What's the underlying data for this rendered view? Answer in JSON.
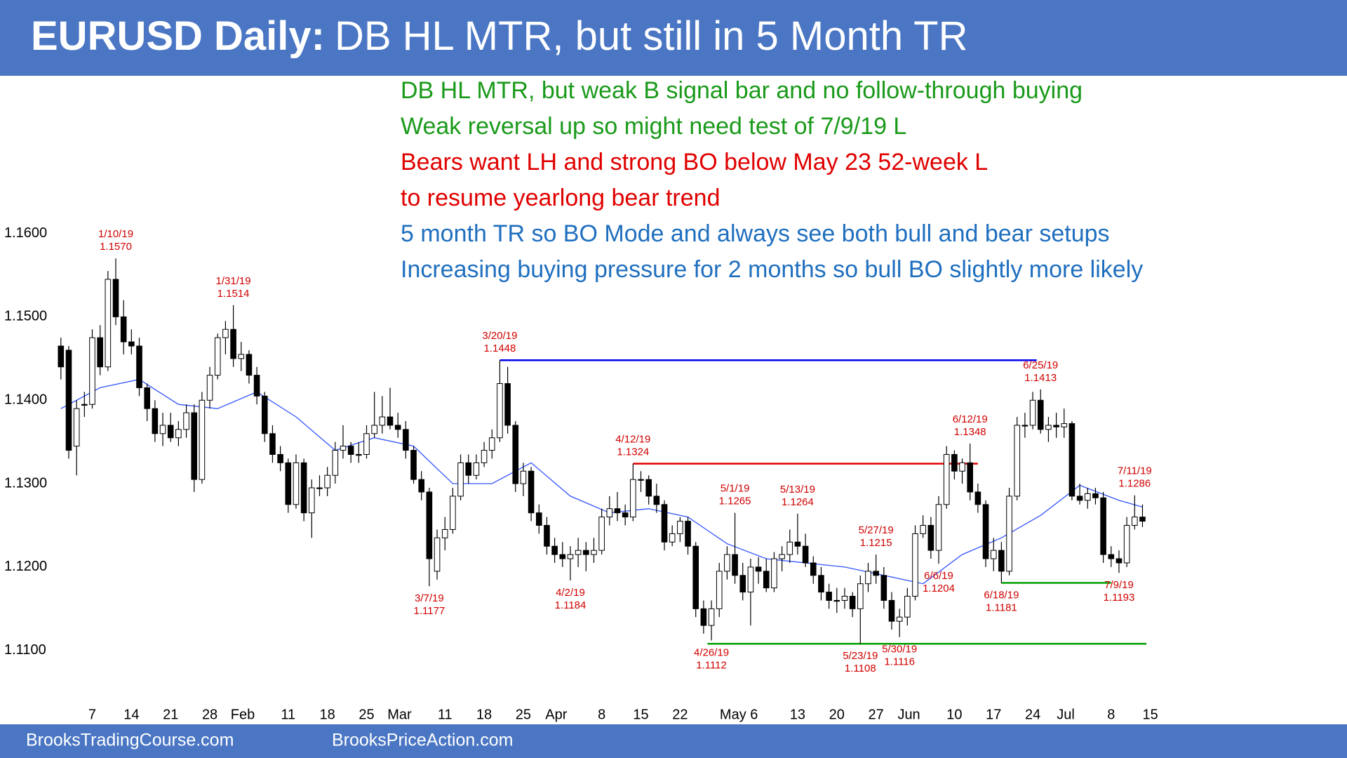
{
  "header": {
    "title_bold": "EURUSD Daily:",
    "title_rest": "DB HL MTR, but still in 5 Month TR"
  },
  "footer": {
    "left": "BrooksTradingCourse.com",
    "right": "BrooksPriceAction.com"
  },
  "chart_data": {
    "type": "candlestick",
    "notes": [
      {
        "text": "DB HL MTR, but weak B signal bar and no follow-through buying",
        "color": "#1a9a1a"
      },
      {
        "text": "Weak reversal up so might need test of 7/9/19 L",
        "color": "#1a9a1a"
      },
      {
        "text": "Bears want LH and strong BO below May 23 52-week L",
        "color": "#e00000"
      },
      {
        "text": "to resume yearlong bear trend",
        "color": "#e00000"
      },
      {
        "text": "5 month TR so BO Mode and always see both bull and bear setups",
        "color": "#1f6fbf"
      },
      {
        "text": "Increasing buying pressure for 2 months so bull BO slightly more likely",
        "color": "#1f6fbf"
      }
    ],
    "xlim": [
      -2.4,
      141
    ],
    "xticks": [
      {
        "value": 4,
        "label": "7"
      },
      {
        "value": 9,
        "label": "14"
      },
      {
        "value": 14,
        "label": "21"
      },
      {
        "value": 19,
        "label": "28"
      },
      {
        "value": 23.2,
        "label": "Feb"
      },
      {
        "value": 29,
        "label": "11"
      },
      {
        "value": 34,
        "label": "18"
      },
      {
        "value": 39,
        "label": "25"
      },
      {
        "value": 43.2,
        "label": "Mar"
      },
      {
        "value": 49,
        "label": "11"
      },
      {
        "value": 54,
        "label": "18"
      },
      {
        "value": 59,
        "label": "25"
      },
      {
        "value": 63.2,
        "label": "Apr"
      },
      {
        "value": 69,
        "label": "8"
      },
      {
        "value": 74,
        "label": "15"
      },
      {
        "value": 79,
        "label": "22"
      },
      {
        "value": 86.5,
        "label": "May 6"
      },
      {
        "value": 94,
        "label": "13"
      },
      {
        "value": 99,
        "label": "20"
      },
      {
        "value": 104,
        "label": "27"
      },
      {
        "value": 108.2,
        "label": "Jun"
      },
      {
        "value": 114,
        "label": "10"
      },
      {
        "value": 119,
        "label": "17"
      },
      {
        "value": 124,
        "label": "24"
      },
      {
        "value": 128.2,
        "label": "Jul"
      },
      {
        "value": 134,
        "label": "8"
      },
      {
        "value": 139,
        "label": "15"
      }
    ],
    "ylim": [
      1.1051,
      1.1789
    ],
    "yticks": [
      {
        "value": 1.11,
        "label": "1.1100"
      },
      {
        "value": 1.12,
        "label": "1.1200"
      },
      {
        "value": 1.13,
        "label": "1.1300"
      },
      {
        "value": 1.14,
        "label": "1.1400"
      },
      {
        "value": 1.15,
        "label": "1.1500"
      },
      {
        "value": 1.16,
        "label": "1.1600"
      }
    ],
    "grid": false,
    "ohlc": [
      [
        1.1465,
        1.1475,
        1.1425,
        1.144
      ],
      [
        1.146,
        1.1465,
        1.133,
        1.134
      ],
      [
        1.1345,
        1.14,
        1.131,
        1.139
      ],
      [
        1.1395,
        1.141,
        1.138,
        1.1395
      ],
      [
        1.1395,
        1.1485,
        1.139,
        1.1475
      ],
      [
        1.1475,
        1.149,
        1.143,
        1.144
      ],
      [
        1.144,
        1.1555,
        1.1435,
        1.1545
      ],
      [
        1.1545,
        1.157,
        1.149,
        1.15
      ],
      [
        1.15,
        1.152,
        1.1455,
        1.147
      ],
      [
        1.147,
        1.1485,
        1.1455,
        1.1465
      ],
      [
        1.1465,
        1.1475,
        1.1405,
        1.1415
      ],
      [
        1.1415,
        1.142,
        1.1375,
        1.139
      ],
      [
        1.139,
        1.14,
        1.135,
        1.136
      ],
      [
        1.136,
        1.1385,
        1.1345,
        1.137
      ],
      [
        1.137,
        1.1385,
        1.135,
        1.1355
      ],
      [
        1.1355,
        1.1375,
        1.1345,
        1.1365
      ],
      [
        1.1365,
        1.1395,
        1.1355,
        1.1385
      ],
      [
        1.1385,
        1.1395,
        1.129,
        1.1305
      ],
      [
        1.1305,
        1.141,
        1.13,
        1.14
      ],
      [
        1.14,
        1.144,
        1.139,
        1.143
      ],
      [
        1.143,
        1.148,
        1.1425,
        1.1475
      ],
      [
        1.1475,
        1.1495,
        1.1455,
        1.1485
      ],
      [
        1.1485,
        1.1514,
        1.144,
        1.145
      ],
      [
        1.145,
        1.147,
        1.1435,
        1.1455
      ],
      [
        1.1455,
        1.146,
        1.142,
        1.143
      ],
      [
        1.143,
        1.144,
        1.1395,
        1.1405
      ],
      [
        1.1405,
        1.141,
        1.135,
        1.136
      ],
      [
        1.136,
        1.137,
        1.1325,
        1.1335
      ],
      [
        1.1335,
        1.1345,
        1.1315,
        1.1325
      ],
      [
        1.1325,
        1.133,
        1.1265,
        1.1275
      ],
      [
        1.1275,
        1.1335,
        1.127,
        1.1325
      ],
      [
        1.1325,
        1.133,
        1.1255,
        1.1265
      ],
      [
        1.1265,
        1.1305,
        1.1235,
        1.1295
      ],
      [
        1.1295,
        1.131,
        1.1285,
        1.1295
      ],
      [
        1.1295,
        1.132,
        1.1285,
        1.131
      ],
      [
        1.131,
        1.135,
        1.13,
        1.134
      ],
      [
        1.134,
        1.137,
        1.133,
        1.1345
      ],
      [
        1.1345,
        1.135,
        1.1325,
        1.1335
      ],
      [
        1.1335,
        1.135,
        1.1325,
        1.1335
      ],
      [
        1.1335,
        1.137,
        1.133,
        1.136
      ],
      [
        1.136,
        1.141,
        1.1355,
        1.137
      ],
      [
        1.137,
        1.1405,
        1.136,
        1.138
      ],
      [
        1.138,
        1.1415,
        1.1365,
        1.137
      ],
      [
        1.137,
        1.1385,
        1.1355,
        1.1365
      ],
      [
        1.1365,
        1.1375,
        1.133,
        1.134
      ],
      [
        1.134,
        1.1345,
        1.13,
        1.1305
      ],
      [
        1.1305,
        1.1315,
        1.128,
        1.129
      ],
      [
        1.129,
        1.1295,
        1.1177,
        1.121
      ],
      [
        1.1195,
        1.1245,
        1.1185,
        1.1235
      ],
      [
        1.1235,
        1.126,
        1.122,
        1.1245
      ],
      [
        1.1245,
        1.1295,
        1.124,
        1.1285
      ],
      [
        1.1285,
        1.1335,
        1.128,
        1.1325
      ],
      [
        1.1325,
        1.1335,
        1.13,
        1.131
      ],
      [
        1.131,
        1.1335,
        1.1305,
        1.1325
      ],
      [
        1.1325,
        1.135,
        1.132,
        1.134
      ],
      [
        1.134,
        1.1365,
        1.133,
        1.1355
      ],
      [
        1.1355,
        1.1448,
        1.135,
        1.142
      ],
      [
        1.142,
        1.144,
        1.136,
        1.137
      ],
      [
        1.137,
        1.1375,
        1.129,
        1.13
      ],
      [
        1.13,
        1.1325,
        1.1285,
        1.1315
      ],
      [
        1.1315,
        1.132,
        1.1255,
        1.1265
      ],
      [
        1.1265,
        1.1275,
        1.124,
        1.125
      ],
      [
        1.125,
        1.126,
        1.1215,
        1.1225
      ],
      [
        1.1225,
        1.1235,
        1.1205,
        1.1215
      ],
      [
        1.1215,
        1.123,
        1.12,
        1.121
      ],
      [
        1.121,
        1.1225,
        1.1184,
        1.1215
      ],
      [
        1.1215,
        1.1235,
        1.12,
        1.122
      ],
      [
        1.122,
        1.123,
        1.1195,
        1.1215
      ],
      [
        1.1215,
        1.1235,
        1.1205,
        1.122
      ],
      [
        1.122,
        1.127,
        1.1215,
        1.126
      ],
      [
        1.126,
        1.1285,
        1.125,
        1.127
      ],
      [
        1.127,
        1.129,
        1.1255,
        1.1265
      ],
      [
        1.1265,
        1.1275,
        1.125,
        1.126
      ],
      [
        1.126,
        1.1324,
        1.1255,
        1.1305
      ],
      [
        1.1305,
        1.1315,
        1.129,
        1.1305
      ],
      [
        1.1305,
        1.131,
        1.1275,
        1.1285
      ],
      [
        1.1285,
        1.13,
        1.1265,
        1.1275
      ],
      [
        1.1275,
        1.128,
        1.122,
        1.123
      ],
      [
        1.123,
        1.125,
        1.1225,
        1.124
      ],
      [
        1.124,
        1.126,
        1.123,
        1.1255
      ],
      [
        1.1255,
        1.126,
        1.1215,
        1.1225
      ],
      [
        1.1225,
        1.123,
        1.114,
        1.115
      ],
      [
        1.115,
        1.116,
        1.112,
        1.113
      ],
      [
        1.113,
        1.116,
        1.1112,
        1.115
      ],
      [
        1.115,
        1.1205,
        1.114,
        1.1195
      ],
      [
        1.1195,
        1.1225,
        1.1185,
        1.1215
      ],
      [
        1.1215,
        1.1265,
        1.118,
        1.119
      ],
      [
        1.119,
        1.1205,
        1.116,
        1.117
      ],
      [
        1.117,
        1.121,
        1.113,
        1.12
      ],
      [
        1.12,
        1.1212,
        1.118,
        1.1195
      ],
      [
        1.1195,
        1.121,
        1.117,
        1.1175
      ],
      [
        1.1175,
        1.1218,
        1.117,
        1.121
      ],
      [
        1.121,
        1.1225,
        1.1195,
        1.1215
      ],
      [
        1.1215,
        1.1245,
        1.1205,
        1.123
      ],
      [
        1.123,
        1.1264,
        1.1215,
        1.1225
      ],
      [
        1.1225,
        1.124,
        1.12,
        1.1205
      ],
      [
        1.1205,
        1.1213,
        1.118,
        1.119
      ],
      [
        1.119,
        1.12,
        1.116,
        1.117
      ],
      [
        1.117,
        1.118,
        1.115,
        1.116
      ],
      [
        1.116,
        1.1175,
        1.1145,
        1.116
      ],
      [
        1.116,
        1.1175,
        1.115,
        1.1165
      ],
      [
        1.1165,
        1.117,
        1.114,
        1.115
      ],
      [
        1.115,
        1.119,
        1.1108,
        1.118
      ],
      [
        1.118,
        1.1205,
        1.117,
        1.1195
      ],
      [
        1.1195,
        1.1215,
        1.118,
        1.119
      ],
      [
        1.119,
        1.12,
        1.115,
        1.116
      ],
      [
        1.116,
        1.117,
        1.1125,
        1.1135
      ],
      [
        1.1135,
        1.115,
        1.1116,
        1.114
      ],
      [
        1.114,
        1.1175,
        1.113,
        1.1165
      ],
      [
        1.1165,
        1.125,
        1.116,
        1.124
      ],
      [
        1.124,
        1.1262,
        1.1235,
        1.125
      ],
      [
        1.125,
        1.126,
        1.121,
        1.122
      ],
      [
        1.122,
        1.1285,
        1.1204,
        1.1275
      ],
      [
        1.1275,
        1.1345,
        1.127,
        1.1335
      ],
      [
        1.1335,
        1.134,
        1.1305,
        1.1315
      ],
      [
        1.1315,
        1.133,
        1.13,
        1.1325
      ],
      [
        1.1325,
        1.1348,
        1.128,
        1.129
      ],
      [
        1.129,
        1.13,
        1.1265,
        1.1275
      ],
      [
        1.1275,
        1.128,
        1.12,
        1.121
      ],
      [
        1.121,
        1.1235,
        1.1195,
        1.122
      ],
      [
        1.122,
        1.123,
        1.1181,
        1.1195
      ],
      [
        1.1195,
        1.1295,
        1.119,
        1.1285
      ],
      [
        1.1285,
        1.138,
        1.128,
        1.137
      ],
      [
        1.137,
        1.1385,
        1.1355,
        1.137
      ],
      [
        1.137,
        1.141,
        1.1365,
        1.14
      ],
      [
        1.14,
        1.1413,
        1.136,
        1.1365
      ],
      [
        1.1365,
        1.138,
        1.135,
        1.137
      ],
      [
        1.137,
        1.1385,
        1.1355,
        1.1368
      ],
      [
        1.1368,
        1.139,
        1.1355,
        1.1372
      ],
      [
        1.1372,
        1.1375,
        1.128,
        1.1285
      ],
      [
        1.1285,
        1.13,
        1.1275,
        1.128
      ],
      [
        1.128,
        1.1295,
        1.127,
        1.1288
      ],
      [
        1.1288,
        1.1295,
        1.1275,
        1.1283
      ],
      [
        1.1283,
        1.129,
        1.1205,
        1.1215
      ],
      [
        1.1215,
        1.1225,
        1.12,
        1.121
      ],
      [
        1.121,
        1.122,
        1.1193,
        1.1205
      ],
      [
        1.1205,
        1.126,
        1.12,
        1.125
      ],
      [
        1.125,
        1.1286,
        1.1245,
        1.126
      ],
      [
        1.126,
        1.1275,
        1.1248,
        1.1255
      ]
    ],
    "ma": {
      "color": "#3355ff",
      "x": [
        0,
        5,
        10,
        15,
        20,
        25,
        30,
        35,
        40,
        45,
        50,
        55,
        60,
        65,
        70,
        75,
        80,
        85,
        90,
        95,
        100,
        105,
        110,
        115,
        120,
        125,
        130,
        135,
        138
      ],
      "values": [
        1.139,
        1.1415,
        1.1425,
        1.1395,
        1.139,
        1.141,
        1.138,
        1.134,
        1.1355,
        1.1345,
        1.13,
        1.13,
        1.1325,
        1.1285,
        1.1265,
        1.127,
        1.126,
        1.1228,
        1.121,
        1.1205,
        1.12,
        1.119,
        1.118,
        1.1215,
        1.1235,
        1.1262,
        1.1298,
        1.128,
        1.1272
      ]
    },
    "levels": [
      {
        "value": 1.1448,
        "x": [
          56,
          124.5
        ],
        "color": "#0000ee"
      },
      {
        "value": 1.1324,
        "x": [
          73,
          117
        ],
        "color": "#e00000"
      },
      {
        "value": 1.1108,
        "x": [
          82.5,
          138.5
        ],
        "color": "#00a000"
      },
      {
        "value": 1.1181,
        "x": [
          120,
          134
        ],
        "color": "#00a000"
      }
    ],
    "annotation_color": "#d00000",
    "annotations": [
      {
        "text": "1/10/19",
        "price": {
          "value": 1.157,
          "label": "1.1570"
        },
        "side": "high"
      },
      {
        "text": "1/31/19",
        "price": {
          "value": 1.1514,
          "label": "1.1514"
        },
        "side": "high"
      },
      {
        "text": "3/7/19",
        "price": {
          "value": 1.1177,
          "label": "1.1177"
        },
        "side": "low"
      },
      {
        "text": "3/20/19",
        "price": {
          "value": 1.1448,
          "label": "1.1448"
        },
        "side": "high"
      },
      {
        "text": "4/2/19",
        "price": {
          "value": 1.1184,
          "label": "1.1184"
        },
        "side": "low"
      },
      {
        "text": "4/12/19",
        "price": {
          "value": 1.1324,
          "label": "1.1324"
        },
        "side": "high"
      },
      {
        "text": "4/26/19",
        "price": {
          "value": 1.1112,
          "label": "1.1112"
        },
        "side": "low"
      },
      {
        "text": "5/1/19",
        "price": {
          "value": 1.1265,
          "label": "1.1265"
        },
        "side": "high"
      },
      {
        "text": "5/13/19",
        "price": {
          "value": 1.1264,
          "label": "1.1264"
        },
        "side": "high"
      },
      {
        "text": "5/23/19",
        "price": {
          "value": 1.1108,
          "label": "1.1108"
        },
        "side": "low"
      },
      {
        "text": "5/27/19",
        "price": {
          "value": 1.1215,
          "label": "1.1215"
        },
        "side": "high"
      },
      {
        "text": "5/30/19",
        "price": {
          "value": 1.1116,
          "label": "1.1116"
        },
        "side": "low"
      },
      {
        "text": "6/6/19",
        "price": {
          "value": 1.1204,
          "label": "1.1204"
        },
        "side": "low"
      },
      {
        "text": "6/12/19",
        "price": {
          "value": 1.1348,
          "label": "1.1348"
        },
        "side": "high"
      },
      {
        "text": "6/18/19",
        "price": {
          "value": 1.1181,
          "label": "1.1181"
        },
        "side": "low"
      },
      {
        "text": "6/25/19",
        "price": {
          "value": 1.1413,
          "label": "1.1413"
        },
        "side": "high"
      },
      {
        "text": "7/11/19",
        "price": {
          "value": 1.1286,
          "label": "1.1286"
        },
        "side": "high"
      },
      {
        "text": "7/9/19",
        "price": {
          "value": 1.1193,
          "label": "1.1193"
        },
        "side": "low"
      }
    ]
  }
}
